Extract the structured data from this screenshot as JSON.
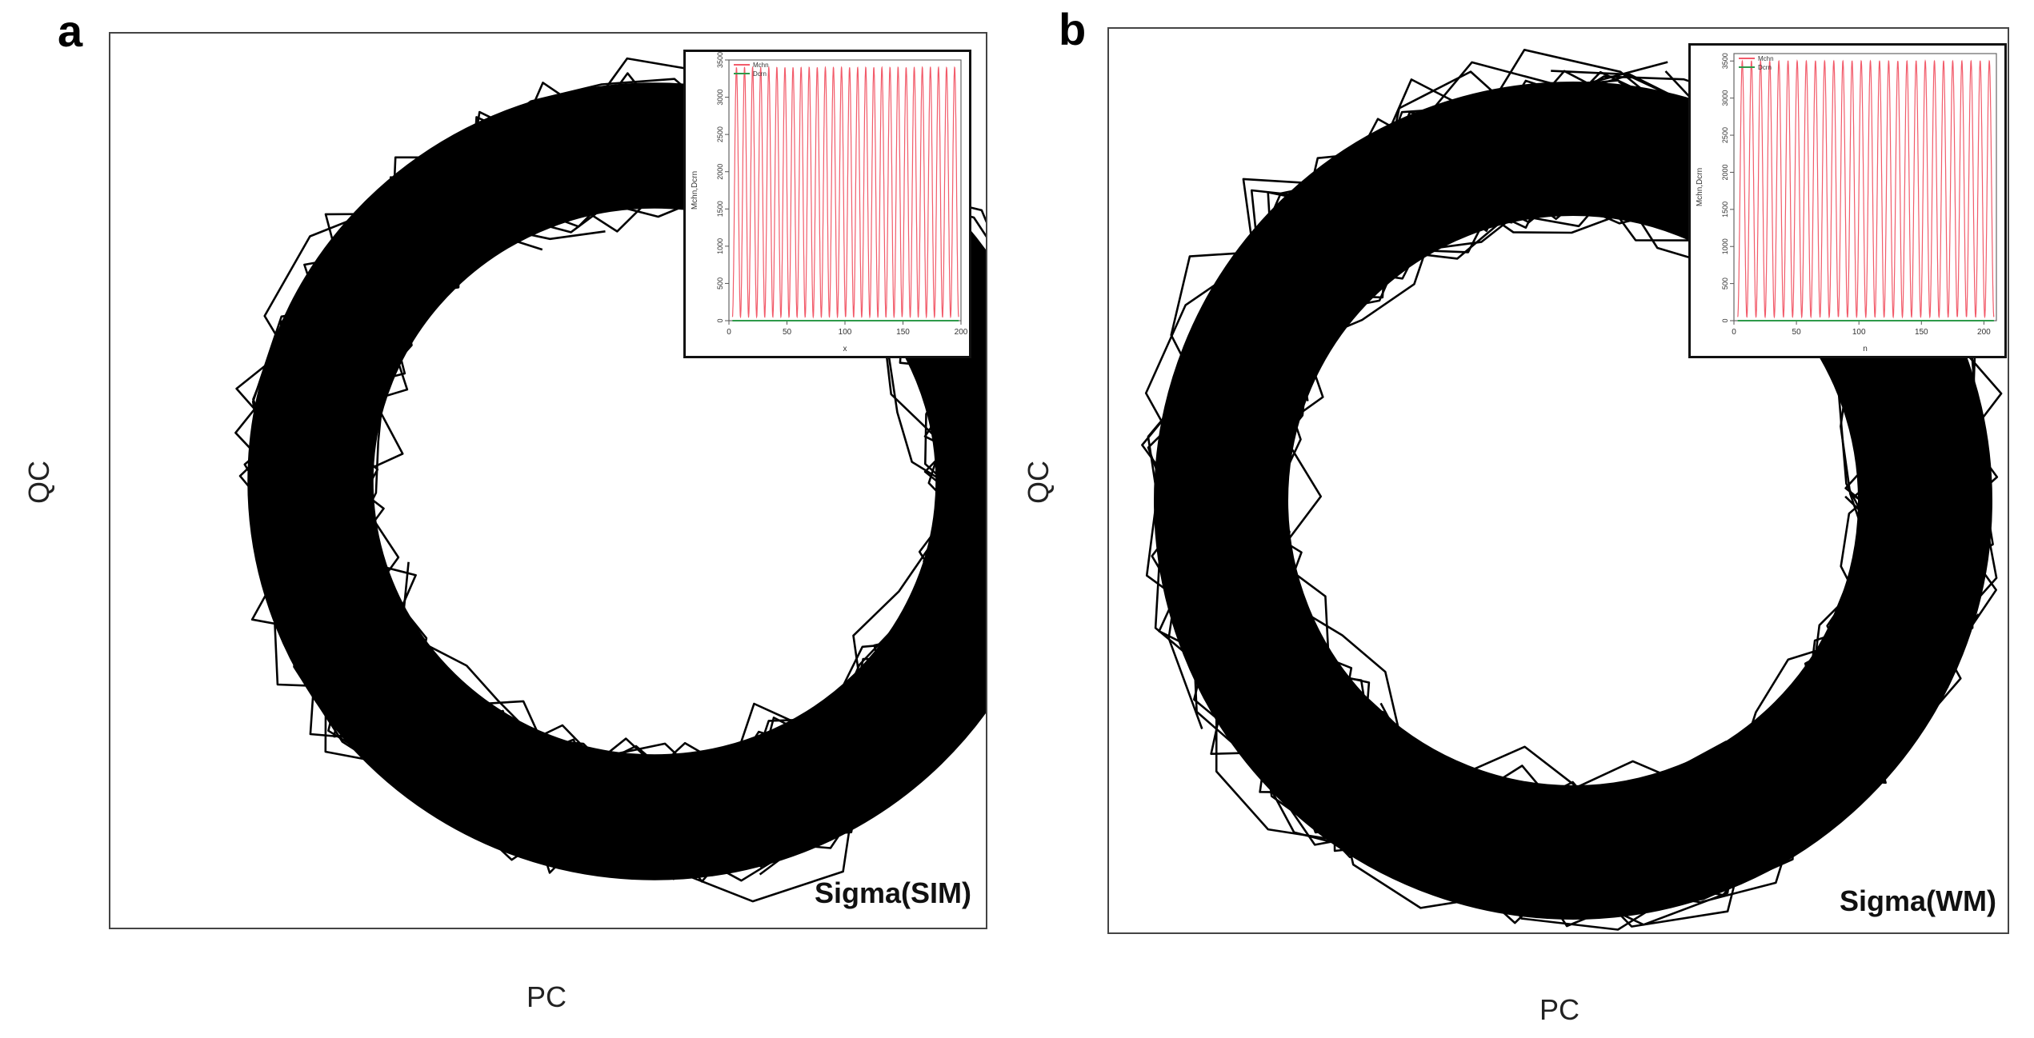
{
  "panels": [
    {
      "letter": "a",
      "xlabel": "PC",
      "ylabel": "QC",
      "annotation": "Sigma(SIM)",
      "inset": {
        "xlabel": "x",
        "ylabel": "Mchn,Dcrn",
        "legend": [
          "Mchn",
          "Dcrn"
        ],
        "xticks": [
          "0",
          "50",
          "100",
          "150",
          "200"
        ],
        "yticks": [
          "0",
          "500",
          "1000",
          "1500",
          "2000",
          "2500",
          "3000",
          "3500"
        ]
      }
    },
    {
      "letter": "b",
      "xlabel": "PC",
      "ylabel": "QC",
      "annotation": "Sigma(WM)",
      "inset": {
        "xlabel": "n",
        "ylabel": "Mchn,Dcrn",
        "legend": [
          "Mchn",
          "Dcrn"
        ],
        "xticks": [
          "0",
          "50",
          "100",
          "150",
          "200"
        ],
        "yticks": [
          "0",
          "500",
          "1000",
          "1500",
          "2000",
          "2500",
          "3000",
          "3500"
        ]
      }
    }
  ],
  "colors": {
    "orbit": "#000000",
    "mchn": "#f25b6a",
    "dcrn": "#2e9a4a",
    "frame": "#444444"
  },
  "chart_data": [
    {
      "type": "line",
      "panel": "a",
      "description_series": "phase-space orbit (PC vs QC) — dense closed loops forming a ring",
      "series": [
        {
          "name": "",
          "shape": "ring",
          "turns": 40
        }
      ],
      "inset": {
        "type": "line",
        "xlim": [
          0,
          200
        ],
        "ylim": [
          0,
          3500
        ],
        "series": [
          {
            "name": "Mchn",
            "min": 50,
            "max": 3400,
            "cycles": 28,
            "color": "#f25b6a"
          },
          {
            "name": "Dcrn",
            "constant": 0,
            "color": "#2e9a4a"
          }
        ]
      }
    },
    {
      "type": "line",
      "panel": "b",
      "series": [
        {
          "name": "",
          "shape": "ring",
          "turns": 40
        }
      ],
      "inset": {
        "type": "line",
        "xlim": [
          0,
          210
        ],
        "ylim": [
          0,
          3600
        ],
        "series": [
          {
            "name": "Mchn",
            "min": 50,
            "max": 3500,
            "cycles": 28,
            "color": "#f25b6a"
          },
          {
            "name": "Dcrn",
            "constant": 0,
            "color": "#2e9a4a"
          }
        ]
      }
    }
  ]
}
